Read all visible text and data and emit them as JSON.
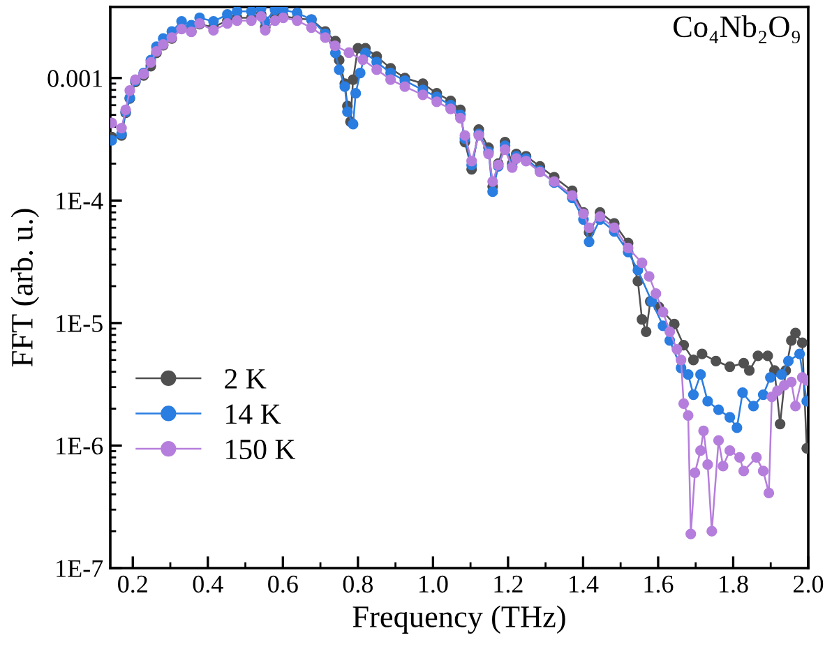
{
  "chart_data": {
    "type": "line",
    "xlabel": "Frequency (THz)",
    "ylabel": "FFT (arb. u.)",
    "annotations": [
      "Co₄Nb₂O₉"
    ],
    "log": "y",
    "xlim": [
      0.14,
      2.0
    ],
    "ylim": [
      1e-07,
      0.0038
    ],
    "xticks": [
      0.2,
      0.4,
      0.6,
      0.8,
      {
        "value": 1.0,
        "label": "1.0"
      },
      1.2,
      1.4,
      1.6,
      1.8,
      {
        "value": 2.0,
        "label": "2.0"
      }
    ],
    "yticks": [
      {
        "value": 1e-07,
        "label": "1E-7"
      },
      {
        "value": 1e-06,
        "label": "1E-6"
      },
      {
        "value": 1e-05,
        "label": "1E-5"
      },
      {
        "value": 0.0001,
        "label": "1E-4"
      },
      {
        "value": 0.001,
        "label": "0.001"
      }
    ],
    "grid": false,
    "legend": "left",
    "marker": "circle",
    "line_style": "solid",
    "series": [
      {
        "name": "2 K",
        "color": "#505050",
        "x": [
          0.144,
          0.17,
          0.181,
          0.192,
          0.207,
          0.229,
          0.248,
          0.263,
          0.281,
          0.304,
          0.33,
          0.356,
          0.378,
          0.415,
          0.452,
          0.478,
          0.516,
          0.542,
          0.553,
          0.579,
          0.601,
          0.638,
          0.676,
          0.713,
          0.74,
          0.75,
          0.765,
          0.772,
          0.78,
          0.787,
          0.8,
          0.82,
          0.85,
          0.887,
          0.925,
          0.973,
          1.01,
          1.047,
          1.073,
          1.085,
          1.103,
          1.122,
          1.148,
          1.159,
          1.174,
          1.192,
          1.211,
          1.222,
          1.248,
          1.285,
          1.323,
          1.371,
          1.401,
          1.416,
          1.445,
          1.483,
          1.52,
          1.546,
          1.557,
          1.568,
          1.579,
          1.602,
          1.643,
          1.668,
          1.694,
          1.717,
          1.754,
          1.791,
          1.828,
          1.843,
          1.866,
          1.892,
          1.91,
          1.925,
          1.94,
          1.955,
          1.966,
          1.984,
          1.996
        ],
        "values": [
          0.00033,
          0.00034,
          0.00052,
          0.00068,
          0.00093,
          0.00105,
          0.00125,
          0.0016,
          0.00185,
          0.0021,
          0.00255,
          0.0024,
          0.00275,
          0.0026,
          0.00295,
          0.0031,
          0.0031,
          0.0033,
          0.0026,
          0.0032,
          0.0032,
          0.00305,
          0.003,
          0.0024,
          0.002,
          0.0014,
          0.0009,
          0.00059,
          0.00044,
          0.00097,
          0.00175,
          0.00175,
          0.0015,
          0.0012,
          0.001,
          0.0009,
          0.00075,
          0.00065,
          0.00055,
          0.0003,
          0.00018,
          0.00038,
          0.00027,
          0.00013,
          0.0002,
          0.0003,
          0.0002,
          0.00024,
          0.00023,
          0.00019,
          0.000155,
          0.00012,
          8e-05,
          5.5e-05,
          8e-05,
          6.5e-05,
          4.5e-05,
          2.2e-05,
          1.07e-05,
          8.5e-06,
          1.5e-05,
          1.35e-05,
          9.8e-06,
          6.6e-06,
          5e-06,
          5.6e-06,
          4.9e-06,
          4.4e-06,
          4.7e-06,
          4.1e-06,
          5.4e-06,
          5.4e-06,
          4.1e-06,
          1.5e-06,
          4.1e-06,
          7.2e-06,
          8.3e-06,
          6.9e-06,
          9.5e-07
        ]
      },
      {
        "name": "14 K",
        "color": "#2a7de1",
        "x": [
          0.144,
          0.17,
          0.181,
          0.192,
          0.207,
          0.229,
          0.248,
          0.263,
          0.281,
          0.304,
          0.33,
          0.356,
          0.378,
          0.415,
          0.452,
          0.478,
          0.516,
          0.542,
          0.553,
          0.579,
          0.601,
          0.638,
          0.676,
          0.713,
          0.74,
          0.75,
          0.765,
          0.772,
          0.787,
          0.794,
          0.806,
          0.82,
          0.85,
          0.887,
          0.925,
          0.973,
          1.01,
          1.047,
          1.073,
          1.085,
          1.103,
          1.122,
          1.148,
          1.159,
          1.174,
          1.192,
          1.211,
          1.222,
          1.248,
          1.285,
          1.323,
          1.371,
          1.401,
          1.416,
          1.445,
          1.483,
          1.52,
          1.546,
          1.583,
          1.613,
          1.631,
          1.661,
          1.68,
          1.694,
          1.713,
          1.732,
          1.761,
          1.791,
          1.81,
          1.825,
          1.854,
          1.88,
          1.899,
          1.929,
          1.947,
          1.977,
          1.996
        ],
        "values": [
          0.00031,
          0.00035,
          0.00053,
          0.00069,
          0.00095,
          0.0011,
          0.0014,
          0.0018,
          0.0021,
          0.0024,
          0.0029,
          0.0027,
          0.0031,
          0.0029,
          0.0033,
          0.0035,
          0.0035,
          0.0037,
          0.0029,
          0.0036,
          0.0036,
          0.0034,
          0.003,
          0.0023,
          0.0016,
          0.00117,
          0.00085,
          0.00053,
          0.00042,
          0.00075,
          0.0011,
          0.0016,
          0.00135,
          0.0011,
          0.00095,
          0.0008,
          0.0007,
          0.0006,
          0.0005,
          0.00032,
          0.000195,
          0.00035,
          0.00025,
          0.000118,
          0.00019,
          0.00028,
          0.00019,
          0.00023,
          0.00022,
          0.000175,
          0.00014,
          0.000105,
          7e-05,
          4.6e-05,
          7e-05,
          5.6e-05,
          3.8e-05,
          2.7e-05,
          1.5e-05,
          9.5e-06,
          7.2e-06,
          4.3e-06,
          3.8e-06,
          2.6e-06,
          3.8e-06,
          2.3e-06,
          1.96e-06,
          1.7e-06,
          1.4e-06,
          2.7e-06,
          2.1e-06,
          2.6e-06,
          3.6e-06,
          3.8e-06,
          4.9e-06,
          5.6e-06,
          2.3e-06
        ]
      },
      {
        "name": "150 K",
        "color": "#b57edc",
        "x": [
          0.144,
          0.17,
          0.181,
          0.192,
          0.207,
          0.229,
          0.248,
          0.263,
          0.281,
          0.304,
          0.33,
          0.356,
          0.378,
          0.415,
          0.452,
          0.478,
          0.516,
          0.542,
          0.553,
          0.579,
          0.601,
          0.638,
          0.676,
          0.713,
          0.739,
          0.776,
          0.813,
          0.85,
          0.887,
          0.925,
          0.973,
          1.01,
          1.047,
          1.073,
          1.085,
          1.103,
          1.122,
          1.148,
          1.159,
          1.174,
          1.192,
          1.211,
          1.222,
          1.248,
          1.285,
          1.323,
          1.371,
          1.401,
          1.416,
          1.445,
          1.483,
          1.52,
          1.557,
          1.576,
          1.594,
          1.613,
          1.631,
          1.65,
          1.661,
          1.668,
          1.68,
          1.687,
          1.698,
          1.713,
          1.721,
          1.732,
          1.743,
          1.761,
          1.773,
          1.791,
          1.817,
          1.828,
          1.862,
          1.88,
          1.895,
          1.903,
          1.918,
          1.936,
          1.955,
          1.966,
          1.984,
          1.996
        ],
        "values": [
          0.00043,
          0.00039,
          0.00055,
          0.00079,
          0.00097,
          0.00108,
          0.00134,
          0.00165,
          0.00188,
          0.00214,
          0.00251,
          0.00238,
          0.00279,
          0.00245,
          0.00279,
          0.00294,
          0.00294,
          0.00318,
          0.00245,
          0.00294,
          0.0031,
          0.00294,
          0.00258,
          0.00214,
          0.00183,
          0.00161,
          0.00141,
          0.00117,
          0.00097,
          0.00085,
          0.00073,
          0.00064,
          0.00056,
          0.00047,
          0.00034,
          0.00021,
          0.00034,
          0.00024,
          0.000143,
          0.000195,
          0.00026,
          0.000186,
          0.00022,
          0.00021,
          0.000171,
          0.000143,
          0.00011,
          7.8e-05,
          6e-05,
          7.4e-05,
          6e-05,
          4.1e-05,
          3.1e-05,
          2.4e-05,
          1.74e-05,
          1.23e-05,
          8.5e-06,
          6.1e-06,
          5e-06,
          2.2e-06,
          1.76e-06,
          1.9e-07,
          6e-07,
          9.1e-07,
          1.32e-06,
          7e-07,
          2e-07,
          1.1e-06,
          6.8e-07,
          9.1e-07,
          8e-07,
          6.2e-07,
          8e-07,
          6.2e-07,
          4.1e-07,
          2.5e-06,
          2.8e-06,
          3.1e-06,
          3.3e-06,
          2.1e-06,
          3.6e-06,
          3.4e-06
        ]
      }
    ]
  }
}
